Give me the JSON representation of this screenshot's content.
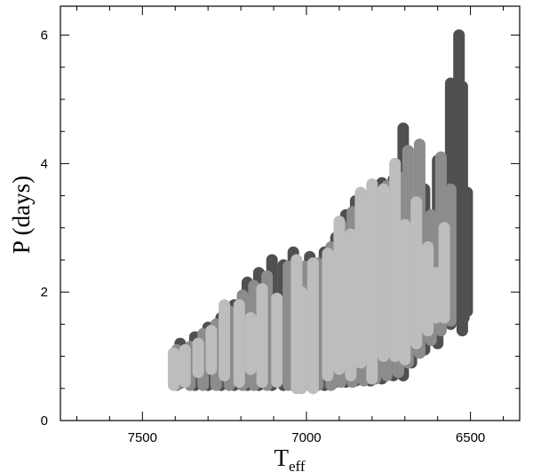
{
  "chart_data": {
    "type": "scatter",
    "title": "",
    "xlabel": "T",
    "xlabel_subscript": "eff",
    "ylabel": "P (days)",
    "x_reversed": true,
    "xlim": [
      7750,
      6350
    ],
    "ylim": [
      0,
      6.45
    ],
    "x_ticks": [
      7500,
      7000,
      6500
    ],
    "x_tick_labels": [
      "7500",
      "7000",
      "6500"
    ],
    "y_ticks": [
      0,
      2,
      4,
      6
    ],
    "y_tick_labels": [
      "0",
      "2",
      "4",
      "6"
    ],
    "grid": false,
    "legend": "none",
    "colors": {
      "dark": "#505050",
      "medium": "#8c8c8c",
      "light": "#bdbdbd"
    },
    "series": [
      {
        "shade": "dark",
        "columns": [
          [
            7385,
            0.58,
            1.2
          ],
          [
            7340,
            0.55,
            1.3
          ],
          [
            7300,
            0.55,
            1.45
          ],
          [
            7260,
            0.55,
            1.6
          ],
          [
            7220,
            0.55,
            1.8
          ],
          [
            7180,
            0.55,
            2.15
          ],
          [
            7145,
            0.55,
            2.3
          ],
          [
            7105,
            0.55,
            2.5
          ],
          [
            7070,
            0.55,
            2.42
          ],
          [
            7040,
            0.55,
            2.62
          ],
          [
            6990,
            0.55,
            2.55
          ],
          [
            6945,
            0.55,
            2.62
          ],
          [
            6910,
            0.6,
            2.85
          ],
          [
            6880,
            0.6,
            3.2
          ],
          [
            6850,
            0.62,
            3.42
          ],
          [
            6805,
            0.62,
            3.5
          ],
          [
            6770,
            0.65,
            3.7
          ],
          [
            6735,
            0.7,
            3.75
          ],
          [
            6705,
            0.7,
            4.55
          ],
          [
            6680,
            0.9,
            3.3
          ],
          [
            6640,
            1.1,
            3.6
          ],
          [
            6615,
            1.3,
            3.0
          ],
          [
            6600,
            1.2,
            4.05
          ],
          [
            6560,
            1.5,
            5.25
          ],
          [
            6520,
            1.6,
            3.4
          ],
          [
            6535,
            1.6,
            6.0
          ],
          [
            6525,
            1.4,
            5.2
          ],
          [
            6510,
            1.7,
            3.55
          ]
        ]
      },
      {
        "shade": "medium",
        "columns": [
          [
            7395,
            0.55,
            1.1
          ],
          [
            7355,
            0.55,
            1.15
          ],
          [
            7315,
            0.55,
            1.35
          ],
          [
            7275,
            0.55,
            1.5
          ],
          [
            7235,
            0.55,
            1.7
          ],
          [
            7195,
            0.55,
            1.95
          ],
          [
            7160,
            0.55,
            2.1
          ],
          [
            7120,
            0.55,
            2.25
          ],
          [
            7055,
            0.55,
            2.4
          ],
          [
            7005,
            0.55,
            2.4
          ],
          [
            6965,
            0.55,
            2.45
          ],
          [
            6925,
            0.55,
            2.7
          ],
          [
            6895,
            0.6,
            3.05
          ],
          [
            6860,
            0.6,
            3.25
          ],
          [
            6825,
            0.62,
            3.4
          ],
          [
            6790,
            0.65,
            3.55
          ],
          [
            6755,
            0.7,
            3.65
          ],
          [
            6720,
            0.75,
            3.8
          ],
          [
            6690,
            0.9,
            4.2
          ],
          [
            6655,
            1.05,
            4.3
          ],
          [
            6620,
            1.25,
            3.2
          ],
          [
            6590,
            1.4,
            4.1
          ],
          [
            6560,
            1.55,
            3.6
          ]
        ]
      },
      {
        "shade": "light",
        "columns": [
          [
            7405,
            0.55,
            1.05
          ],
          [
            7370,
            0.6,
            1.1
          ],
          [
            7330,
            0.75,
            1.2
          ],
          [
            7290,
            0.8,
            1.4
          ],
          [
            7250,
            0.7,
            1.8
          ],
          [
            7205,
            0.6,
            1.8
          ],
          [
            7170,
            0.8,
            1.6
          ],
          [
            7135,
            0.6,
            2.05
          ],
          [
            7090,
            0.6,
            1.9
          ],
          [
            7030,
            0.5,
            2.5
          ],
          [
            7015,
            0.5,
            2.0
          ],
          [
            6980,
            0.5,
            2.45
          ],
          [
            6935,
            0.7,
            2.6
          ],
          [
            6900,
            0.8,
            3.1
          ],
          [
            6865,
            0.7,
            2.9
          ],
          [
            6835,
            0.9,
            3.55
          ],
          [
            6800,
            0.65,
            3.68
          ],
          [
            6765,
            1.0,
            3.6
          ],
          [
            6730,
            1.0,
            4.0
          ],
          [
            6700,
            0.95,
            3.05
          ],
          [
            6665,
            1.2,
            3.4
          ],
          [
            6630,
            1.4,
            2.7
          ],
          [
            6605,
            1.6,
            2.3
          ],
          [
            6580,
            1.6,
            3.0
          ]
        ]
      }
    ]
  }
}
